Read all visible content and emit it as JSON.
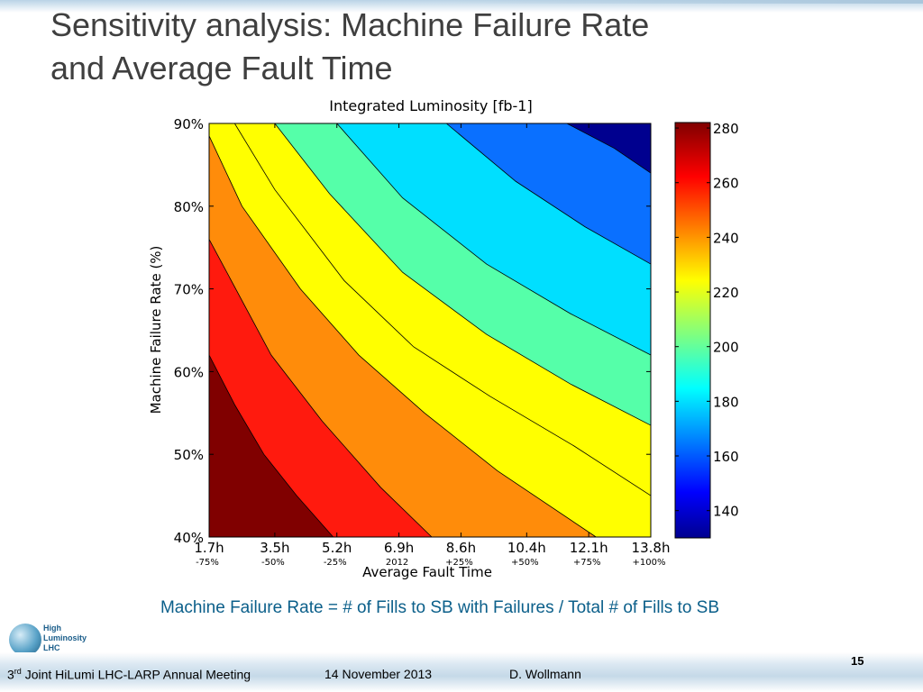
{
  "slide": {
    "title_line1": "Sensitivity analysis: Machine Failure Rate",
    "title_line2": "and Average Fault Time",
    "caption": "Machine Failure Rate = # of Fills to SB with Failures / Total # of Fills to SB",
    "page_number": "15"
  },
  "logo": {
    "line1": "High",
    "line2": "Luminosity",
    "line3": "LHC"
  },
  "footer": {
    "meeting_ordinal": "3",
    "meeting_sup": "rd",
    "meeting_rest": " Joint HiLumi LHC-LARP Annual Meeting",
    "date": "14 November 2013",
    "author": "D. Wollmann"
  },
  "chart_data": {
    "type": "heatmap",
    "subtype": "filled-contour",
    "title": "Integrated Luminosity [fb-1]",
    "xlabel": "Average Fault Time",
    "ylabel": "Machine Failure Rate (%)",
    "x_ticks": [
      "1.7h",
      "3.5h",
      "5.2h",
      "6.9h",
      "8.6h",
      "10.4h",
      "12.1h",
      "13.8h"
    ],
    "x_ticks_relative": [
      "-75%",
      "-50%",
      "-25%",
      "2012",
      "+25%",
      "+50%",
      "+75%",
      "+100%"
    ],
    "x_values": [
      1.7,
      3.5,
      5.2,
      6.9,
      8.6,
      10.4,
      12.1,
      13.8
    ],
    "y_ticks": [
      "40%",
      "50%",
      "60%",
      "70%",
      "80%",
      "90%"
    ],
    "y_values": [
      40,
      50,
      60,
      70,
      80,
      90
    ],
    "xlim": [
      1.7,
      13.8
    ],
    "ylim": [
      40,
      90
    ],
    "colorbar": {
      "ticks": [
        140,
        160,
        180,
        200,
        220,
        240,
        260,
        280
      ],
      "range": [
        130,
        282
      ],
      "colormap": "jet"
    },
    "contour_levels": [
      {
        "range": [
          270,
          282
        ],
        "color": "#800000",
        "boundary": [
          [
            1.7,
            62
          ],
          [
            2.4,
            56
          ],
          [
            3.2,
            50
          ],
          [
            4.1,
            45
          ],
          [
            5.1,
            40
          ]
        ]
      },
      {
        "range": [
          255,
          270
        ],
        "color": "#ff1a0e",
        "boundary": [
          [
            1.7,
            76
          ],
          [
            3.4,
            62
          ],
          [
            4.8,
            54
          ],
          [
            6.4,
            46
          ],
          [
            7.8,
            40
          ]
        ]
      },
      {
        "range": [
          240,
          255
        ],
        "color": "#ff8c0a",
        "boundary": [
          [
            1.7,
            88.5
          ],
          [
            2.6,
            80
          ],
          [
            4.2,
            70
          ],
          [
            5.8,
            62
          ],
          [
            7.6,
            55
          ],
          [
            9.6,
            48
          ],
          [
            12.3,
            40
          ]
        ]
      },
      {
        "range": [
          225,
          240
        ],
        "color": "#ffff00",
        "boundary": [
          [
            1.7,
            90
          ],
          [
            2.4,
            90
          ],
          [
            3.5,
            82
          ],
          [
            5.4,
            71
          ],
          [
            7.3,
            63
          ],
          [
            9.4,
            57
          ],
          [
            11.7,
            51
          ],
          [
            13.8,
            45
          ]
        ]
      },
      {
        "range": [
          210,
          225
        ],
        "color": "#ffff00",
        "boundary": [
          [
            3.5,
            90
          ],
          [
            5.0,
            81.5
          ],
          [
            7.0,
            72
          ],
          [
            9.3,
            64.5
          ],
          [
            11.6,
            58.5
          ],
          [
            13.8,
            53.5
          ]
        ]
      },
      {
        "range": [
          195,
          210
        ],
        "color": "#55ffa9",
        "boundary": [
          [
            5.2,
            90
          ],
          [
            7.0,
            81
          ],
          [
            9.3,
            73
          ],
          [
            11.6,
            67
          ],
          [
            13.8,
            62
          ]
        ]
      },
      {
        "range": [
          180,
          195
        ],
        "color": "#00dfff",
        "boundary": [
          [
            8.2,
            90
          ],
          [
            10.1,
            83
          ],
          [
            12.0,
            77.5
          ],
          [
            13.8,
            73
          ]
        ]
      },
      {
        "range": [
          160,
          180
        ],
        "color": "#0a70ff",
        "boundary": [
          [
            11.5,
            90
          ],
          [
            12.8,
            87
          ],
          [
            13.8,
            84
          ]
        ]
      },
      {
        "range": [
          130,
          160
        ],
        "color": "#00008f",
        "boundary": []
      }
    ],
    "background_color": "#00008f"
  }
}
